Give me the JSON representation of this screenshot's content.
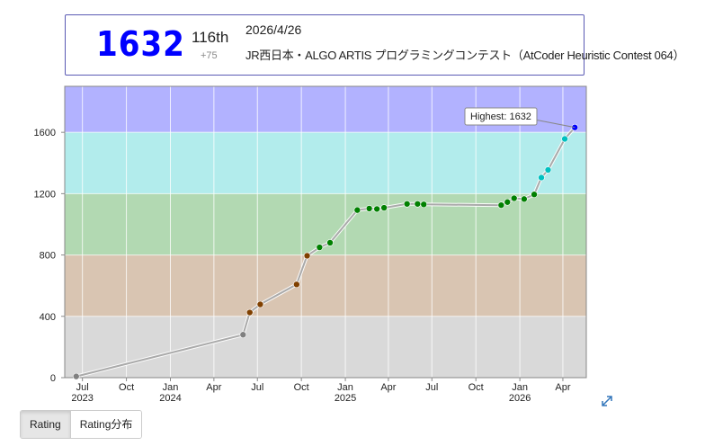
{
  "status": {
    "rating": "1632",
    "rating_color": "#0000ff",
    "rank": "116th",
    "diff": "+75",
    "date": "2026/4/26",
    "contest": "JR西日本・ALGO ARTIS プログラミングコンテスト（AtCoder Heuristic Contest 064）"
  },
  "tabs": [
    {
      "label": "Rating",
      "active": true
    },
    {
      "label": "Rating分布",
      "active": false
    }
  ],
  "icons": {
    "expand": "expand-arrows-icon"
  },
  "chart_data": {
    "type": "line",
    "title": "",
    "xlabel": "",
    "ylabel": "",
    "ylim": [
      0,
      1900
    ],
    "grid": true,
    "y_ticks": [
      "0",
      "400",
      "800",
      "1200",
      "1600"
    ],
    "x_ticks": [
      {
        "date": "2023-07-01",
        "label": "Jul",
        "year": "2023"
      },
      {
        "date": "2023-10-01",
        "label": "Oct",
        "year": ""
      },
      {
        "date": "2024-01-01",
        "label": "Jan",
        "year": "2024"
      },
      {
        "date": "2024-04-01",
        "label": "Apr",
        "year": ""
      },
      {
        "date": "2024-07-01",
        "label": "Jul",
        "year": ""
      },
      {
        "date": "2024-10-01",
        "label": "Oct",
        "year": ""
      },
      {
        "date": "2025-01-01",
        "label": "Jan",
        "year": "2025"
      },
      {
        "date": "2025-04-01",
        "label": "Apr",
        "year": ""
      },
      {
        "date": "2025-07-01",
        "label": "Jul",
        "year": ""
      },
      {
        "date": "2025-10-01",
        "label": "Oct",
        "year": ""
      },
      {
        "date": "2026-01-01",
        "label": "Jan",
        "year": "2026"
      },
      {
        "date": "2026-04-01",
        "label": "Apr",
        "year": ""
      }
    ],
    "x_range": [
      "2023-05-25",
      "2026-05-20"
    ],
    "bands": [
      {
        "from": 0,
        "to": 400,
        "color": "#d9d9d9"
      },
      {
        "from": 400,
        "to": 800,
        "color": "#d9c5b2"
      },
      {
        "from": 800,
        "to": 1200,
        "color": "#b2d9b2"
      },
      {
        "from": 1200,
        "to": 1600,
        "color": "#b2ecec"
      },
      {
        "from": 1600,
        "to": 1900,
        "color": "#b2b2ff"
      }
    ],
    "series": [
      {
        "points": [
          {
            "date": "2023-06-18",
            "rating": 8,
            "color": "#808080"
          },
          {
            "date": "2024-06-01",
            "rating": 280,
            "color": "#808080"
          },
          {
            "date": "2024-06-15",
            "rating": 425,
            "color": "#804000"
          },
          {
            "date": "2024-07-07",
            "rating": 478,
            "color": "#804000"
          },
          {
            "date": "2024-09-21",
            "rating": 608,
            "color": "#804000"
          },
          {
            "date": "2024-10-13",
            "rating": 795,
            "color": "#804000"
          },
          {
            "date": "2024-11-08",
            "rating": 850,
            "color": "#008000"
          },
          {
            "date": "2024-11-30",
            "rating": 880,
            "color": "#008000"
          },
          {
            "date": "2025-01-26",
            "rating": 1093,
            "color": "#008000"
          },
          {
            "date": "2025-02-20",
            "rating": 1103,
            "color": "#008000"
          },
          {
            "date": "2025-03-08",
            "rating": 1100,
            "color": "#008000"
          },
          {
            "date": "2025-03-23",
            "rating": 1108,
            "color": "#008000"
          },
          {
            "date": "2025-05-10",
            "rating": 1133,
            "color": "#008000"
          },
          {
            "date": "2025-06-01",
            "rating": 1133,
            "color": "#008000"
          },
          {
            "date": "2025-06-14",
            "rating": 1130,
            "color": "#008000"
          },
          {
            "date": "2025-11-23",
            "rating": 1125,
            "color": "#008000"
          },
          {
            "date": "2025-12-06",
            "rating": 1145,
            "color": "#008000"
          },
          {
            "date": "2025-12-20",
            "rating": 1170,
            "color": "#008000"
          },
          {
            "date": "2026-01-10",
            "rating": 1165,
            "color": "#008000"
          },
          {
            "date": "2026-01-31",
            "rating": 1195,
            "color": "#008000"
          },
          {
            "date": "2026-02-15",
            "rating": 1305,
            "color": "#00c0c0"
          },
          {
            "date": "2026-03-01",
            "rating": 1355,
            "color": "#00c0c0"
          },
          {
            "date": "2026-04-05",
            "rating": 1557,
            "color": "#00c0c0"
          },
          {
            "date": "2026-04-26",
            "rating": 1632,
            "color": "#0000ff"
          }
        ]
      }
    ],
    "annotation": {
      "text": "Highest: 1632",
      "date": "2026-04-26",
      "rating": 1632
    }
  }
}
